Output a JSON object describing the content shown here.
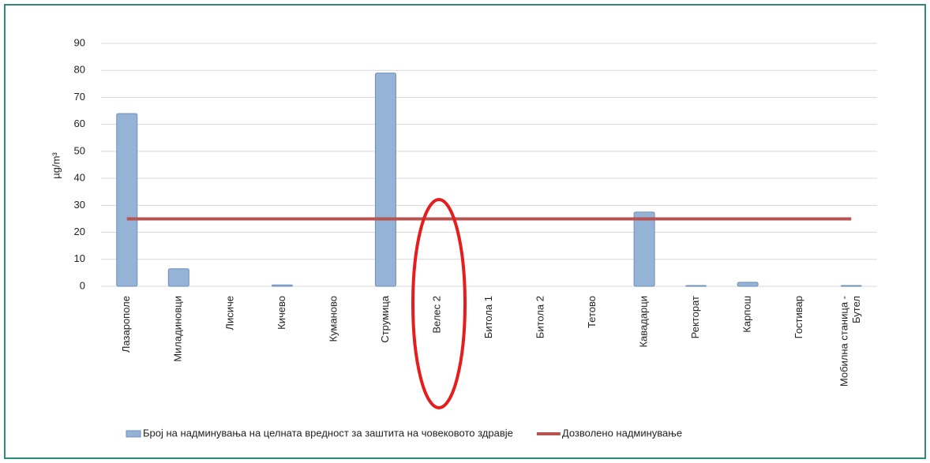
{
  "chart_data": {
    "type": "bar",
    "y_label": "µg/m³",
    "categories": [
      "Лазарополе",
      "Миладиновци",
      "Лисиче",
      "Кичево",
      "Куманово",
      "Струмица",
      "Велес 2",
      "Битола 1",
      "Битола 2",
      "Тетово",
      "Кавадарци",
      "Ректорат",
      "Карпош",
      "Гостивар",
      "Мобилна станица -\nБутел"
    ],
    "series": [
      {
        "name": "Број на надминувања на целната вредност за заштита на човековото здравје",
        "type": "bar",
        "color": "#95b3d7",
        "values": [
          64,
          6.5,
          0,
          0.5,
          0,
          79,
          0,
          0,
          0,
          0,
          27.5,
          0.3,
          1.5,
          0,
          0.3
        ]
      },
      {
        "name": "Дозволено надминување",
        "type": "line",
        "color": "#b85450",
        "values": [
          25,
          25,
          25,
          25,
          25,
          25,
          25,
          25,
          25,
          25,
          25,
          25,
          25,
          25,
          25
        ]
      }
    ],
    "ylim": [
      0,
      90
    ],
    "yticks": [
      0,
      10,
      20,
      30,
      40,
      50,
      60,
      70,
      80,
      90
    ],
    "grid": true,
    "legend": "bottom"
  }
}
